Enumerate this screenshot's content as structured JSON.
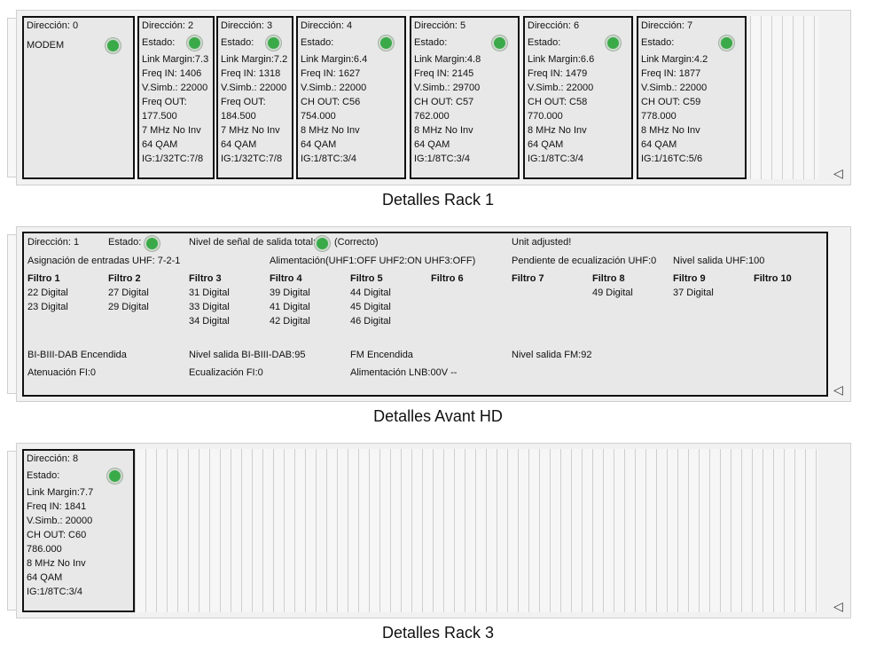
{
  "rack1": {
    "title": "Detalles  Rack 1",
    "modules": [
      {
        "lines": [
          "Dirección: 0",
          "MODEM"
        ]
      },
      {
        "lines": [
          "Dirección: 2",
          "Estado:",
          "Link Margin:7.3",
          "Freq IN: 1406",
          "V.Simb.: 22000",
          "Freq OUT:",
          "177.500",
          "7 MHz No Inv",
          "64 QAM",
          "IG:1/32TC:7/8"
        ]
      },
      {
        "lines": [
          "Dirección: 3",
          "Estado:",
          "Link Margin:7.2",
          "Freq IN: 1318",
          "V.Simb.: 22000",
          "Freq OUT:",
          "184.500",
          "7 MHz No Inv",
          "64 QAM",
          "IG:1/32TC:7/8"
        ]
      },
      {
        "lines": [
          "Dirección: 4",
          "Estado:",
          "Link Margin:6.4",
          "Freq IN: 1627",
          "V.Simb.: 22000",
          "CH OUT: C56",
          "754.000",
          "8 MHz No Inv",
          "64 QAM",
          "IG:1/8TC:3/4"
        ]
      },
      {
        "lines": [
          "Dirección: 5",
          "Estado:",
          "Link Margin:4.8",
          "Freq IN: 2145",
          "V.Simb.: 29700",
          "CH OUT: C57",
          "762.000",
          "8 MHz No Inv",
          "64 QAM",
          "IG:1/8TC:3/4"
        ]
      },
      {
        "lines": [
          "Dirección: 6",
          "Estado:",
          "Link Margin:6.6",
          "Freq IN: 1479",
          "V.Simb.: 22000",
          "CH OUT: C58",
          "770.000",
          "8 MHz No Inv",
          "64 QAM",
          "IG:1/8TC:3/4"
        ]
      },
      {
        "lines": [
          "Dirección: 7",
          "Estado:",
          "Link Margin:4.2",
          "Freq IN: 1877",
          "V.Simb.: 22000",
          "CH OUT: C59",
          "778.000",
          "8 MHz No Inv",
          "64 QAM",
          "IG:1/16TC:5/6"
        ]
      }
    ]
  },
  "avant": {
    "title": "Detalles Avant HD",
    "direccion": "Dirección: 1",
    "estado": "Estado:",
    "nivel_senal": "Nivel de señal de salida total:",
    "nivel_estado": "(Correcto)",
    "unit_adjusted": "Unit adjusted!",
    "asignacion": "Asignación de entradas UHF: 7-2-1",
    "alimentacion": "Alimentación(UHF1:OFF UHF2:ON UHF3:OFF)",
    "pendiente": "Pendiente de ecualización UHF:0",
    "nivel_uhf": "Nivel salida UHF:100",
    "filters": [
      {
        "name": "Filtro 1",
        "values": [
          "22 Digital",
          "23 Digital"
        ]
      },
      {
        "name": "Filtro 2",
        "values": [
          "27 Digital",
          "29 Digital"
        ]
      },
      {
        "name": "Filtro 3",
        "values": [
          "31 Digital",
          "33 Digital",
          "34 Digital"
        ]
      },
      {
        "name": "Filtro 4",
        "values": [
          "39 Digital",
          "41 Digital",
          "42 Digital"
        ]
      },
      {
        "name": "Filtro 5",
        "values": [
          "44 Digital",
          "45 Digital",
          "46 Digital"
        ]
      },
      {
        "name": "Filtro 6",
        "values": []
      },
      {
        "name": "Filtro 7",
        "values": []
      },
      {
        "name": "Filtro 8",
        "values": [
          "49 Digital"
        ]
      },
      {
        "name": "Filtro 9",
        "values": [
          "37 Digital"
        ]
      },
      {
        "name": "Filtro 10",
        "values": []
      }
    ],
    "bi_dab": "BI-BIII-DAB  Encendida",
    "nivel_dab": "Nivel salida BI-BIII-DAB:95",
    "fm": "FM Encendida",
    "nivel_fm": "Nivel salida FM:92",
    "atenuacion": "Atenuación FI:0",
    "ecualizacion": "Ecualización FI:0",
    "lnb": "Alimentación LNB:00V --"
  },
  "rack3": {
    "title": "Detalles  Rack 3",
    "modules": [
      {
        "lines": [
          "Dirección: 8",
          "Estado:",
          "Link Margin:7.7",
          "Freq IN: 1841",
          "V.Simb.: 20000",
          "CH OUT: C60",
          "786.000",
          "8 MHz No Inv",
          "64 QAM",
          "IG:1/8TC:3/4"
        ]
      }
    ]
  },
  "icons": {
    "status_led": "status-led-icon",
    "collapse": "collapse-arrow-icon"
  },
  "colors": {
    "led_ok": "#3aaa49",
    "panel": "#e8e8e8",
    "rack": "#f1f1f1"
  }
}
